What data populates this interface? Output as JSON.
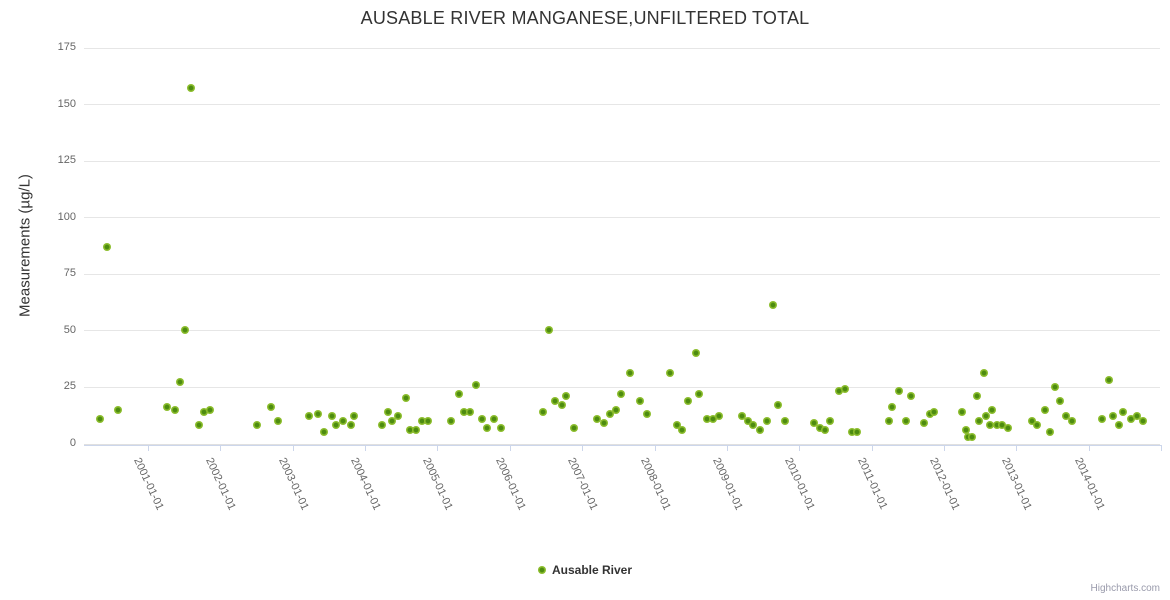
{
  "chart": {
    "credit": "Highcharts.com"
  },
  "chart_data": {
    "type": "scatter",
    "title": "AUSABLE RIVER MANGANESE,UNFILTERED TOTAL",
    "xlabel": "",
    "ylabel": "Measurements (µg/L)",
    "ylim": [
      0,
      175
    ],
    "ytick_interval": 25,
    "yticks": [
      0,
      25,
      50,
      75,
      100,
      125,
      150,
      175
    ],
    "xlim": [
      2000.115,
      2014.985
    ],
    "xtick_years": [
      2001,
      2002,
      2003,
      2004,
      2005,
      2006,
      2007,
      2008,
      2009,
      2010,
      2011,
      2012,
      2013,
      2014,
      2015
    ],
    "xtick_labels": [
      "2001-01-01",
      "2002-01-01",
      "2003-01-01",
      "2004-01-01",
      "2005-01-01",
      "2006-01-01",
      "2007-01-01",
      "2008-01-01",
      "2009-01-01",
      "2010-01-01",
      "2011-01-01",
      "2012-01-01",
      "2013-01-01",
      "2014-01-01"
    ],
    "grid": "horizontal",
    "legend_position": "bottom-center",
    "colors": {
      "marker_outer": "#8dbe2d",
      "marker_center": "#4d8c10",
      "gridline": "#e6e6e6",
      "axis_line": "#ccd6eb",
      "axis_label_text": "#666666",
      "title_text": "#333333",
      "credit_text": "#999aab"
    },
    "series": [
      {
        "name": "Ausable River",
        "points": [
          [
            2000.33,
            11
          ],
          [
            2000.43,
            87
          ],
          [
            2000.58,
            15
          ],
          [
            2001.26,
            16
          ],
          [
            2001.37,
            15
          ],
          [
            2001.44,
            27
          ],
          [
            2001.51,
            50
          ],
          [
            2001.6,
            157
          ],
          [
            2001.7,
            8
          ],
          [
            2001.77,
            14
          ],
          [
            2001.86,
            15
          ],
          [
            2002.51,
            8
          ],
          [
            2002.7,
            16
          ],
          [
            2002.79,
            10
          ],
          [
            2003.22,
            12
          ],
          [
            2003.35,
            13
          ],
          [
            2003.43,
            5
          ],
          [
            2003.54,
            12
          ],
          [
            2003.6,
            8
          ],
          [
            2003.7,
            10
          ],
          [
            2003.81,
            8
          ],
          [
            2003.85,
            12
          ],
          [
            2004.23,
            8
          ],
          [
            2004.31,
            14
          ],
          [
            2004.37,
            10
          ],
          [
            2004.45,
            12
          ],
          [
            2004.56,
            20
          ],
          [
            2004.62,
            6
          ],
          [
            2004.71,
            6
          ],
          [
            2004.79,
            10
          ],
          [
            2004.87,
            10
          ],
          [
            2005.19,
            10
          ],
          [
            2005.3,
            22
          ],
          [
            2005.36,
            14
          ],
          [
            2005.45,
            14
          ],
          [
            2005.53,
            26
          ],
          [
            2005.62,
            11
          ],
          [
            2005.69,
            7
          ],
          [
            2005.78,
            11
          ],
          [
            2005.88,
            7
          ],
          [
            2006.46,
            14
          ],
          [
            2006.54,
            50
          ],
          [
            2006.63,
            19
          ],
          [
            2006.72,
            17
          ],
          [
            2006.78,
            21
          ],
          [
            2006.88,
            7
          ],
          [
            2007.2,
            11
          ],
          [
            2007.3,
            9
          ],
          [
            2007.38,
            13
          ],
          [
            2007.47,
            15
          ],
          [
            2007.54,
            22
          ],
          [
            2007.66,
            31
          ],
          [
            2007.8,
            19
          ],
          [
            2007.9,
            13
          ],
          [
            2008.21,
            31
          ],
          [
            2008.31,
            8
          ],
          [
            2008.38,
            6
          ],
          [
            2008.46,
            19
          ],
          [
            2008.57,
            40
          ],
          [
            2008.62,
            22
          ],
          [
            2008.73,
            11
          ],
          [
            2008.81,
            11
          ],
          [
            2008.89,
            12
          ],
          [
            2009.21,
            12
          ],
          [
            2009.29,
            10
          ],
          [
            2009.36,
            8
          ],
          [
            2009.46,
            6
          ],
          [
            2009.55,
            10
          ],
          [
            2009.63,
            61
          ],
          [
            2009.7,
            17
          ],
          [
            2009.8,
            10
          ],
          [
            2010.21,
            9
          ],
          [
            2010.29,
            7
          ],
          [
            2010.36,
            6
          ],
          [
            2010.43,
            10
          ],
          [
            2010.55,
            23
          ],
          [
            2010.63,
            24
          ],
          [
            2010.73,
            5
          ],
          [
            2010.8,
            5
          ],
          [
            2011.24,
            10
          ],
          [
            2011.28,
            16
          ],
          [
            2011.38,
            23
          ],
          [
            2011.48,
            10
          ],
          [
            2011.54,
            21
          ],
          [
            2011.73,
            9
          ],
          [
            2011.8,
            13
          ],
          [
            2011.86,
            14
          ],
          [
            2012.25,
            14
          ],
          [
            2012.3,
            6
          ],
          [
            2012.33,
            3
          ],
          [
            2012.39,
            3
          ],
          [
            2012.46,
            21
          ],
          [
            2012.48,
            10
          ],
          [
            2012.55,
            31
          ],
          [
            2012.58,
            12
          ],
          [
            2012.63,
            8
          ],
          [
            2012.67,
            15
          ],
          [
            2012.73,
            8
          ],
          [
            2012.8,
            8
          ],
          [
            2012.88,
            7
          ],
          [
            2013.22,
            10
          ],
          [
            2013.28,
            8
          ],
          [
            2013.4,
            15
          ],
          [
            2013.47,
            5
          ],
          [
            2013.53,
            25
          ],
          [
            2013.6,
            19
          ],
          [
            2013.69,
            12
          ],
          [
            2013.77,
            10
          ],
          [
            2014.19,
            11
          ],
          [
            2014.28,
            28
          ],
          [
            2014.33,
            12
          ],
          [
            2014.42,
            8
          ],
          [
            2014.47,
            14
          ],
          [
            2014.59,
            11
          ],
          [
            2014.67,
            12
          ],
          [
            2014.75,
            10
          ]
        ]
      }
    ]
  }
}
